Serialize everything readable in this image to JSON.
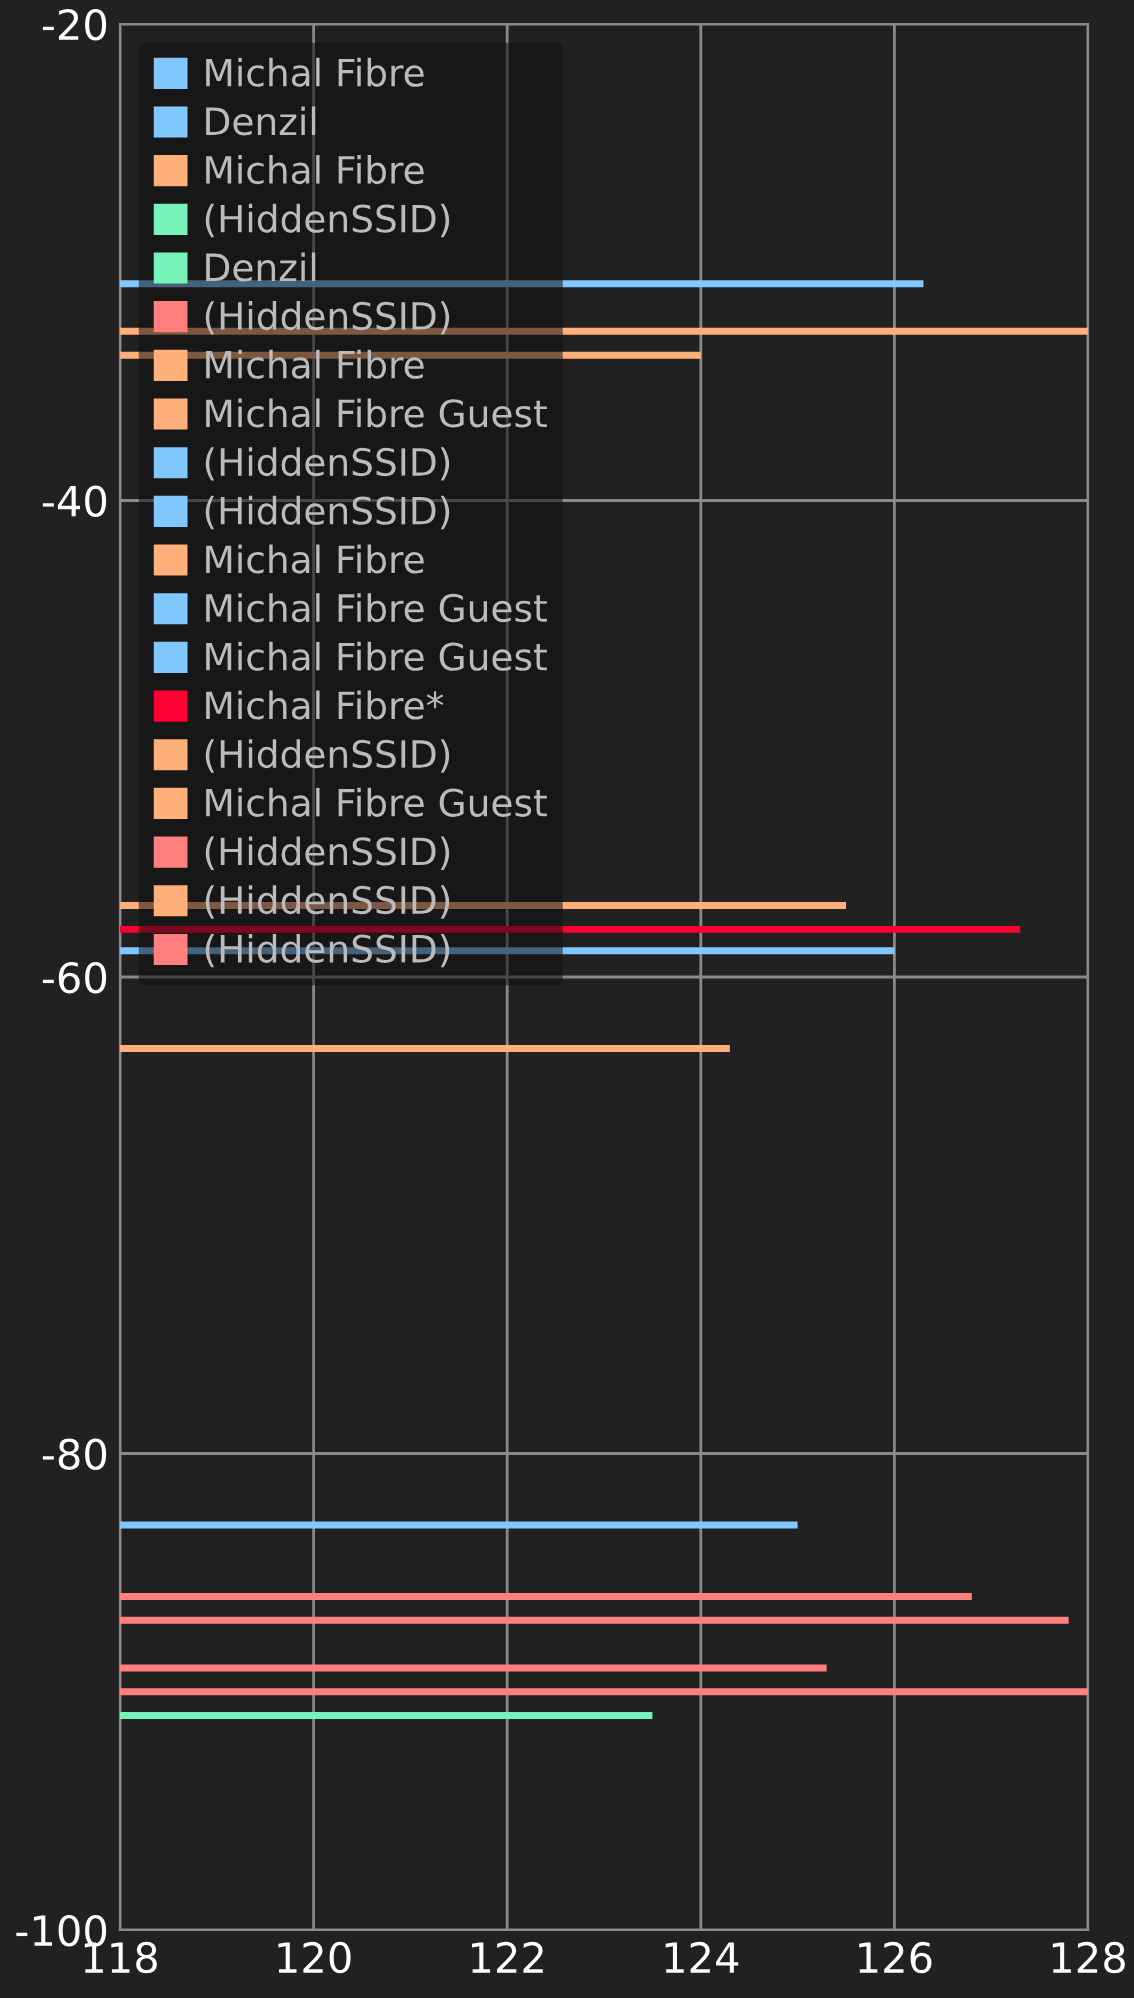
{
  "chart_data": {
    "type": "line",
    "xlim": [
      118,
      128
    ],
    "xticks": [
      118,
      120,
      122,
      124,
      126,
      128
    ],
    "ylim": [
      -100,
      -20
    ],
    "yticks": [
      -100,
      -80,
      -60,
      -40,
      -20
    ],
    "grid": true,
    "legend": "top left",
    "marker": "none",
    "line_style": "solid",
    "series": [
      {
        "color": "#80c8ff",
        "x": [
          118,
          126.3
        ],
        "values": [
          -30.9,
          -30.9
        ]
      },
      {
        "color": "#ffb07a",
        "x": [
          118,
          128
        ],
        "values": [
          -32.9,
          -32.9
        ]
      },
      {
        "color": "#ffb07a",
        "x": [
          118,
          124
        ],
        "values": [
          -33.9,
          -33.9
        ]
      },
      {
        "color": "#ffb07a",
        "x": [
          118,
          125.5
        ],
        "values": [
          -57,
          -57
        ]
      },
      {
        "color": "#ff0033",
        "x": [
          118,
          127.3
        ],
        "values": [
          -58,
          -58
        ]
      },
      {
        "color": "#80c8ff",
        "x": [
          118,
          126
        ],
        "values": [
          -58.9,
          -58.9
        ]
      },
      {
        "color": "#ffb07a",
        "x": [
          118,
          124.3
        ],
        "values": [
          -63,
          -63
        ]
      },
      {
        "color": "#80c8ff",
        "x": [
          118,
          125
        ],
        "values": [
          -83,
          -83
        ]
      },
      {
        "color": "#ff7f7f",
        "x": [
          118,
          126.8
        ],
        "values": [
          -86,
          -86
        ]
      },
      {
        "color": "#ff7f7f",
        "x": [
          118,
          127.8
        ],
        "values": [
          -87,
          -87
        ]
      },
      {
        "color": "#ff7f7f",
        "x": [
          118,
          125.3
        ],
        "values": [
          -89,
          -89
        ]
      },
      {
        "color": "#ff7f7f",
        "x": [
          118,
          128
        ],
        "values": [
          -90,
          -90
        ]
      },
      {
        "color": "#77f2b8",
        "x": [
          118,
          123.5
        ],
        "values": [
          -91,
          -91
        ]
      },
      {
        "name": "Michal Fibre",
        "color": "#80c8ff"
      },
      {
        "name": "Denzil",
        "color": "#80c8ff"
      },
      {
        "name": "Michal Fibre",
        "color": "#ffb07a"
      },
      {
        "name": "(HiddenSSID)",
        "color": "#77f2b8"
      },
      {
        "name": "Denzil",
        "color": "#77f2b8"
      },
      {
        "name": "(HiddenSSID)",
        "color": "#ff7f7f"
      },
      {
        "name": "Michal Fibre",
        "color": "#ffb07a"
      },
      {
        "name": "Michal Fibre Guest",
        "color": "#ffb07a"
      },
      {
        "name": "(HiddenSSID)",
        "color": "#80c8ff"
      },
      {
        "name": "(HiddenSSID)",
        "color": "#80c8ff"
      },
      {
        "name": "Michal Fibre",
        "color": "#ffb07a"
      },
      {
        "name": "Michal Fibre Guest",
        "color": "#80c8ff"
      },
      {
        "name": "Michal Fibre Guest",
        "color": "#80c8ff"
      },
      {
        "name": "Michal Fibre*",
        "color": "#ff0033"
      },
      {
        "name": "(HiddenSSID)",
        "color": "#ffb07a"
      },
      {
        "name": "Michal Fibre Guest",
        "color": "#ffb07a"
      },
      {
        "name": "(HiddenSSID)",
        "color": "#ff7f7f"
      },
      {
        "name": "(HiddenSSID)",
        "color": "#ffb07a"
      },
      {
        "name": "(HiddenSSID)",
        "color": "#ff7f7f"
      }
    ]
  }
}
